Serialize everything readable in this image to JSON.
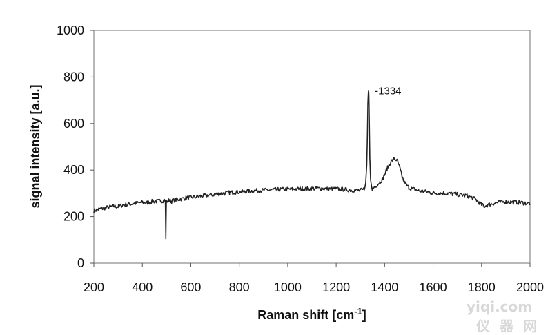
{
  "chart_data": {
    "type": "line",
    "title": "",
    "xlabel": "Raman shift [cm",
    "xlabel_sup": "-1",
    "xlabel_suffix": "]",
    "ylabel": "signal intensity [a.u.]",
    "xlim": [
      200,
      2000
    ],
    "ylim": [
      0,
      1000
    ],
    "xticks": [
      200,
      400,
      600,
      800,
      1000,
      1200,
      1400,
      1600,
      1800,
      2000
    ],
    "yticks": [
      0,
      200,
      400,
      600,
      800,
      1000
    ],
    "grid": false,
    "annotation": {
      "text": "-1334",
      "x": 1334,
      "y": 740
    },
    "series": [
      {
        "color": "#222222",
        "x": [
          200,
          220,
          240,
          260,
          280,
          300,
          320,
          340,
          360,
          380,
          400,
          420,
          440,
          460,
          480,
          490,
          495,
          496,
          497,
          498,
          499,
          500,
          502,
          510,
          520,
          540,
          560,
          580,
          600,
          620,
          640,
          660,
          680,
          700,
          720,
          740,
          760,
          780,
          800,
          820,
          840,
          860,
          880,
          900,
          920,
          940,
          960,
          980,
          1000,
          1020,
          1040,
          1060,
          1080,
          1100,
          1120,
          1140,
          1160,
          1180,
          1200,
          1220,
          1240,
          1260,
          1280,
          1300,
          1310,
          1318,
          1322,
          1326,
          1329,
          1331,
          1333,
          1334,
          1335,
          1337,
          1339,
          1342,
          1346,
          1350,
          1360,
          1370,
          1380,
          1390,
          1400,
          1410,
          1420,
          1430,
          1440,
          1448,
          1455,
          1462,
          1470,
          1480,
          1490,
          1500,
          1510,
          1520,
          1540,
          1560,
          1580,
          1600,
          1620,
          1640,
          1660,
          1680,
          1700,
          1720,
          1740,
          1760,
          1780,
          1800,
          1810,
          1820,
          1840,
          1860,
          1880,
          1900,
          1920,
          1940,
          1960,
          1980,
          2000
        ],
        "y": [
          225,
          232,
          236,
          240,
          245,
          243,
          250,
          252,
          256,
          258,
          262,
          260,
          265,
          266,
          268,
          270,
          268,
          200,
          105,
          180,
          262,
          268,
          262,
          270,
          266,
          272,
          276,
          280,
          282,
          285,
          288,
          290,
          292,
          296,
          298,
          300,
          303,
          305,
          306,
          308,
          310,
          311,
          312,
          313,
          314,
          315,
          316,
          317,
          318,
          318,
          319,
          320,
          320,
          321,
          321,
          321,
          320,
          320,
          319,
          318,
          316,
          314,
          313,
          312,
          315,
          322,
          345,
          420,
          560,
          690,
          735,
          740,
          720,
          600,
          450,
          360,
          330,
          318,
          330,
          338,
          348,
          360,
          380,
          405,
          425,
          440,
          448,
          445,
          432,
          410,
          380,
          350,
          335,
          325,
          320,
          318,
          312,
          308,
          305,
          302,
          300,
          300,
          300,
          297,
          295,
          292,
          290,
          282,
          270,
          252,
          244,
          248,
          255,
          260,
          262,
          264,
          262,
          262,
          260,
          258,
          256
        ]
      }
    ]
  },
  "watermark": {
    "line1": "yiqi.com",
    "line2": "仪器网"
  }
}
